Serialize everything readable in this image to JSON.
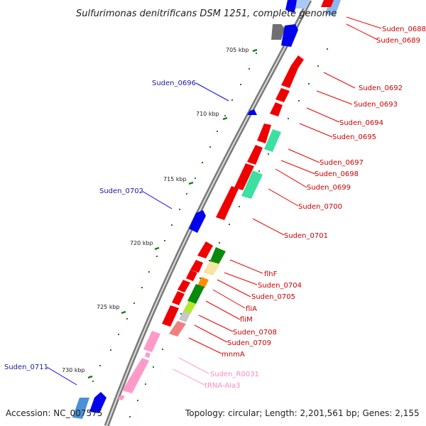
{
  "title": "Sulfurimonas denitrificans DSM 1251, complete genome",
  "accession": "Accession: NC_007575",
  "summary": "Topology: circular; Length: 2,201,561 bp; Genes: 2,155",
  "colors": {
    "forward_cds": "#0000ee",
    "reverse_cds": "#ee0000",
    "tick": "#1a7a1a",
    "backbone": "#8a8a8a",
    "rna": "#ff9ac8",
    "rna_label": "#ff88c0"
  },
  "ruler": [
    "705 kbp",
    "710 kbp",
    "715 kbp",
    "720 kbp",
    "725 kbp",
    "730 kbp"
  ],
  "left_labels": [
    "Suden_0696",
    "Suden_0702",
    "Suden_0711"
  ],
  "right_labels": [
    "Suden_0688",
    "Suden_0689",
    "Suden_0692",
    "Suden_0693",
    "Suden_0694",
    "Suden_0695",
    "Suden_0697",
    "Suden_0698",
    "Suden_0699",
    "Suden_0700",
    "Suden_0701",
    "flhF",
    "Suden_0704",
    "Suden_0705",
    "fliA",
    "fliM",
    "Suden_0708",
    "Suden_0709",
    "mnmA"
  ],
  "rna_labels": [
    "Suden_R0031",
    "tRNA-Ala3"
  ]
}
